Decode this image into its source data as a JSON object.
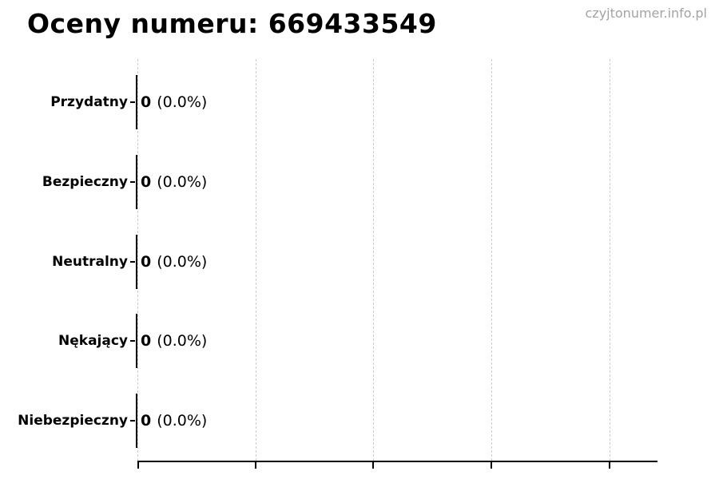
{
  "title": "Oceny numeru: 669433549",
  "watermark": "czyjtonumer.info.pl",
  "rows": [
    {
      "label": "Przydatny",
      "value": "0",
      "pct": "(0.0%)"
    },
    {
      "label": "Bezpieczny",
      "value": "0",
      "pct": "(0.0%)"
    },
    {
      "label": "Neutralny",
      "value": "0",
      "pct": "(0.0%)"
    },
    {
      "label": "Nękający",
      "value": "0",
      "pct": "(0.0%)"
    },
    {
      "label": "Niebezpieczny",
      "value": "0",
      "pct": "(0.0%)"
    }
  ],
  "colors": {
    "text": "#000000",
    "watermark": "#a3a3a3",
    "gridline": "#cccccc",
    "axis": "#000000",
    "bar_edge": "#000000",
    "background": "#ffffff"
  },
  "chart_data": {
    "type": "bar",
    "orientation": "horizontal",
    "title": "Oceny numeru: 669433549",
    "categories": [
      "Przydatny",
      "Bezpieczny",
      "Neutralny",
      "Nękający",
      "Niebezpieczny"
    ],
    "values": [
      0,
      0,
      0,
      0,
      0
    ],
    "percentages": [
      0.0,
      0.0,
      0.0,
      0.0,
      0.0
    ],
    "data_labels": [
      "0 (0.0%)",
      "0 (0.0%)",
      "0 (0.0%)",
      "0 (0.0%)",
      "0 (0.0%)"
    ],
    "xlabel": "",
    "ylabel": "",
    "x_gridline_count": 5,
    "x_tick_labels_visible": false,
    "grid": true,
    "grid_style": "dashed",
    "legend": false,
    "bar_edge_color": "#000000",
    "watermark": "czyjtonumer.info.pl"
  }
}
